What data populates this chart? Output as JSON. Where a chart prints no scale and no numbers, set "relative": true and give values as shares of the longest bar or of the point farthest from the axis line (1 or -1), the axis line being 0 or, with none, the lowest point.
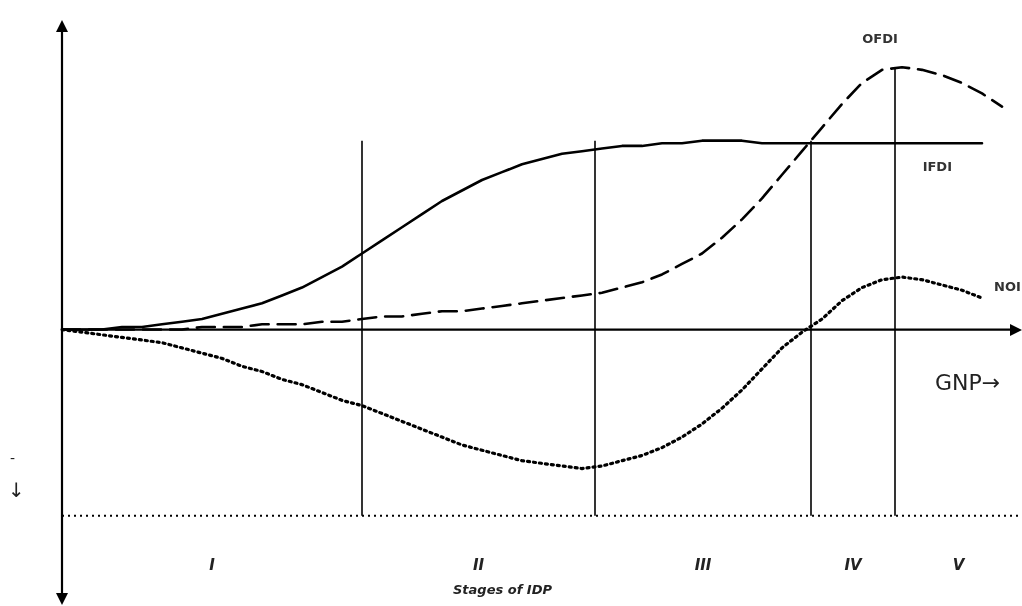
{
  "chart_data": {
    "type": "line",
    "relative": true,
    "tick_labels": false,
    "legend": false,
    "marker": "none",
    "categories": [
      null,
      null,
      null,
      null,
      null,
      null,
      null,
      null,
      null,
      null,
      null,
      null,
      null,
      null,
      null,
      null,
      null,
      null,
      null,
      null,
      null,
      null,
      null,
      null,
      null,
      null,
      null,
      null,
      null,
      null,
      null,
      null,
      null,
      null,
      null,
      null,
      null,
      null,
      null,
      null,
      null,
      null,
      null,
      null,
      null,
      null,
      null,
      null,
      null
    ],
    "series": [
      {
        "name": "IFDI",
        "color": "#000000",
        "line_style": "solid",
        "values": [
          0,
          0,
          0,
          0.01,
          0.01,
          0.02,
          0.03,
          0.04,
          0.06,
          0.08,
          0.1,
          0.13,
          0.16,
          0.2,
          0.24,
          0.29,
          0.34,
          0.39,
          0.44,
          0.49,
          0.53,
          0.57,
          0.6,
          0.63,
          0.65,
          0.67,
          0.68,
          0.69,
          0.7,
          0.7,
          0.71,
          0.71,
          0.72,
          0.72,
          0.72,
          0.71,
          0.71,
          0.71,
          0.71,
          0.71,
          0.71,
          0.71,
          0.71,
          0.71,
          0.71,
          0.71,
          0.71,
          null,
          null
        ]
      },
      {
        "name": "OFDI",
        "color": "#000000",
        "line_style": "dashed",
        "values": [
          0,
          0,
          0,
          0,
          0,
          0,
          0,
          0.01,
          0.01,
          0.01,
          0.02,
          0.02,
          0.02,
          0.03,
          0.03,
          0.04,
          0.05,
          0.05,
          0.06,
          0.07,
          0.07,
          0.08,
          0.09,
          0.1,
          0.11,
          0.12,
          0.13,
          0.14,
          0.16,
          0.18,
          0.21,
          0.25,
          0.29,
          0.35,
          0.42,
          0.5,
          0.59,
          0.68,
          0.77,
          0.86,
          0.94,
          0.99,
          1.0,
          0.99,
          0.97,
          0.94,
          0.9,
          0.85,
          null
        ]
      },
      {
        "name": "NOI",
        "color": "#000000",
        "line_style": "dotted",
        "values": [
          0,
          -0.01,
          -0.02,
          -0.03,
          -0.04,
          -0.05,
          -0.07,
          -0.09,
          -0.11,
          -0.14,
          -0.16,
          -0.19,
          -0.21,
          -0.24,
          -0.27,
          -0.29,
          -0.32,
          -0.35,
          -0.38,
          -0.41,
          -0.44,
          -0.46,
          -0.48,
          -0.5,
          -0.51,
          -0.52,
          -0.53,
          -0.52,
          -0.5,
          -0.48,
          -0.45,
          -0.41,
          -0.36,
          -0.3,
          -0.23,
          -0.15,
          -0.07,
          -0.01,
          0.04,
          0.11,
          0.16,
          0.19,
          0.2,
          0.19,
          0.17,
          0.15,
          0.12,
          null,
          null
        ]
      }
    ],
    "ref_lines": [
      {
        "axis": "y",
        "value": -0.71,
        "color": "#000000",
        "line_style": "dotted"
      }
    ],
    "annotations": [
      "I",
      "II",
      "III",
      "IV",
      "V",
      "GNP→",
      "-",
      "↓",
      "Stages of IDP"
    ]
  }
}
